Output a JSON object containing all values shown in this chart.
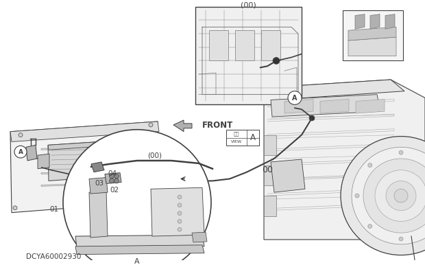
{
  "bg_color": "#ffffff",
  "line_color": "#404040",
  "fig_width": 6.2,
  "fig_height": 3.86,
  "dpi": 100,
  "watermark": "DCYA60002930",
  "label_00_top": "(00)",
  "label_00_mid": "00",
  "label_front": "FRONT",
  "label_01": "01",
  "label_02": "02",
  "label_03": "03",
  "label_04": "04",
  "label_circle_00": "(00)",
  "label_A_bottom": "A",
  "label_view_jp": "矢視",
  "label_view_en": "VIEW",
  "label_A": "A"
}
